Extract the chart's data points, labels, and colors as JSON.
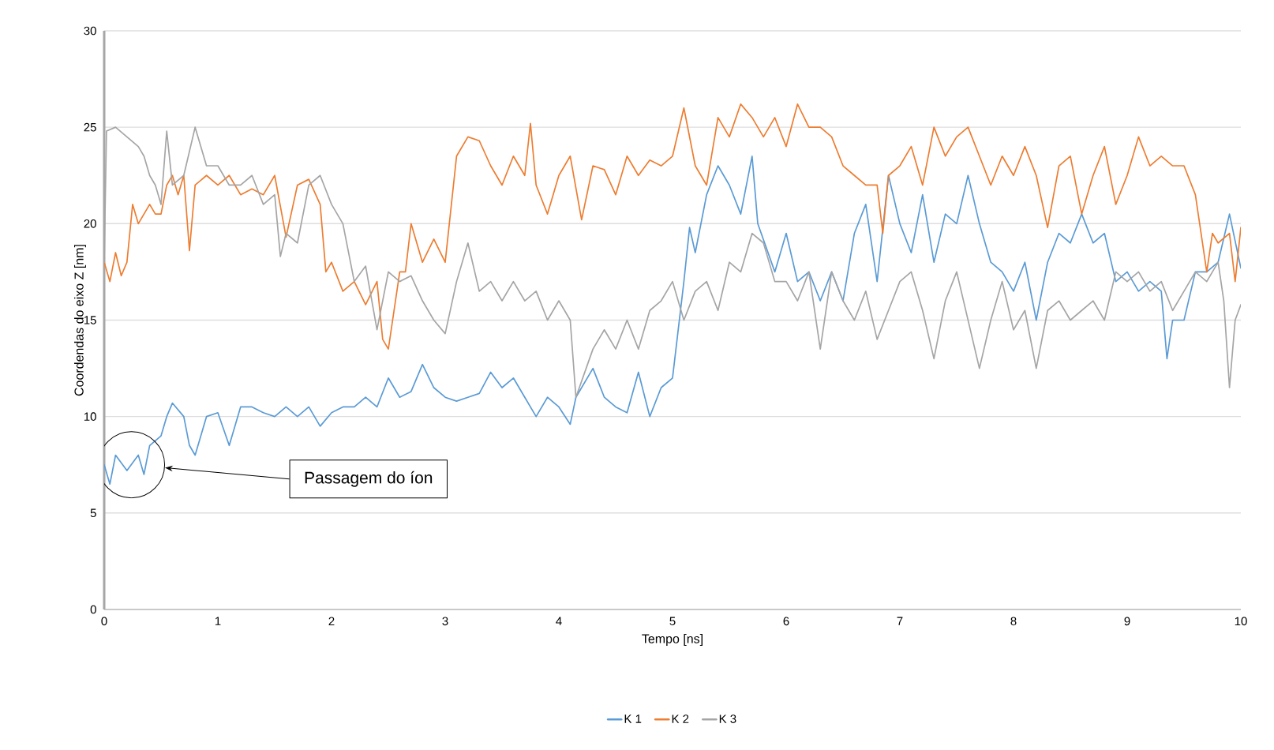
{
  "chart_data": {
    "type": "line",
    "xlabel": "Tempo [ns]",
    "ylabel": "Coordendas do eixo Z [nm]",
    "xlim": [
      0,
      10
    ],
    "ylim": [
      0,
      30
    ],
    "xticks": [
      0,
      1,
      2,
      3,
      4,
      5,
      6,
      7,
      8,
      9,
      10
    ],
    "yticks": [
      0,
      5,
      10,
      15,
      20,
      25,
      30
    ],
    "grid": "y",
    "legend": "bottom",
    "marker": "none",
    "line_style": "solid",
    "annotations": [
      "Passagem do íon"
    ],
    "series": [
      {
        "name": "K 1",
        "color": "#5b9bd5",
        "x": [
          0,
          0.05,
          0.1,
          0.2,
          0.3,
          0.35,
          0.4,
          0.5,
          0.55,
          0.6,
          0.7,
          0.75,
          0.8,
          0.9,
          1.0,
          1.1,
          1.2,
          1.3,
          1.4,
          1.5,
          1.6,
          1.7,
          1.8,
          1.9,
          2.0,
          2.1,
          2.2,
          2.3,
          2.4,
          2.5,
          2.6,
          2.7,
          2.8,
          2.9,
          3.0,
          3.1,
          3.2,
          3.3,
          3.4,
          3.5,
          3.6,
          3.7,
          3.8,
          3.9,
          4.0,
          4.1,
          4.15,
          4.3,
          4.4,
          4.5,
          4.6,
          4.7,
          4.8,
          4.9,
          5.0,
          5.1,
          5.15,
          5.2,
          5.3,
          5.4,
          5.5,
          5.6,
          5.7,
          5.75,
          5.9,
          6.0,
          6.1,
          6.2,
          6.3,
          6.4,
          6.5,
          6.6,
          6.7,
          6.8,
          6.9,
          7.0,
          7.1,
          7.2,
          7.3,
          7.4,
          7.5,
          7.6,
          7.7,
          7.8,
          7.9,
          8.0,
          8.1,
          8.2,
          8.3,
          8.4,
          8.5,
          8.6,
          8.7,
          8.8,
          8.9,
          9.0,
          9.1,
          9.2,
          9.3,
          9.35,
          9.4,
          9.5,
          9.6,
          9.7,
          9.8,
          9.9,
          10.0
        ],
        "values": [
          7.5,
          6.5,
          8,
          7.2,
          8,
          7,
          8.5,
          9,
          10,
          10.7,
          10,
          8.5,
          8,
          10,
          10.2,
          8.5,
          10.5,
          10.5,
          10.2,
          10,
          10.5,
          10,
          10.5,
          9.5,
          10.2,
          10.5,
          10.5,
          11,
          10.5,
          12,
          11,
          11.3,
          12.7,
          11.5,
          11,
          10.8,
          11,
          11.2,
          12.3,
          11.5,
          12,
          11,
          10,
          11,
          10.5,
          9.6,
          11,
          12.5,
          11,
          10.5,
          10.2,
          12.3,
          10,
          11.5,
          12,
          17,
          19.8,
          18.5,
          21.5,
          23,
          22,
          20.5,
          23.5,
          20,
          17.5,
          19.5,
          17,
          17.5,
          16,
          17.5,
          16,
          19.5,
          21,
          17,
          22.5,
          20,
          18.5,
          21.5,
          18,
          20.5,
          20,
          22.5,
          20,
          18,
          17.5,
          16.5,
          18,
          15,
          18,
          19.5,
          19,
          20.5,
          19,
          19.5,
          17,
          17.5,
          16.5,
          17,
          16.5,
          13,
          15,
          15,
          17.5,
          17.5,
          18,
          20.5,
          17.7
        ]
      },
      {
        "name": "K 2",
        "color": "#ed7d31",
        "x": [
          0,
          0.05,
          0.1,
          0.15,
          0.2,
          0.25,
          0.3,
          0.4,
          0.45,
          0.5,
          0.55,
          0.6,
          0.65,
          0.7,
          0.75,
          0.8,
          0.9,
          1.0,
          1.1,
          1.2,
          1.3,
          1.4,
          1.5,
          1.6,
          1.7,
          1.8,
          1.9,
          1.95,
          2.0,
          2.1,
          2.2,
          2.3,
          2.4,
          2.45,
          2.5,
          2.6,
          2.65,
          2.7,
          2.8,
          2.9,
          3.0,
          3.1,
          3.2,
          3.3,
          3.4,
          3.5,
          3.6,
          3.7,
          3.75,
          3.8,
          3.9,
          4.0,
          4.1,
          4.2,
          4.3,
          4.4,
          4.5,
          4.6,
          4.7,
          4.8,
          4.9,
          5.0,
          5.1,
          5.2,
          5.3,
          5.4,
          5.5,
          5.6,
          5.7,
          5.8,
          5.9,
          6.0,
          6.1,
          6.2,
          6.3,
          6.4,
          6.5,
          6.6,
          6.7,
          6.8,
          6.85,
          6.9,
          7.0,
          7.1,
          7.2,
          7.3,
          7.4,
          7.5,
          7.6,
          7.7,
          7.8,
          7.9,
          8.0,
          8.1,
          8.2,
          8.3,
          8.4,
          8.5,
          8.6,
          8.7,
          8.8,
          8.9,
          9.0,
          9.1,
          9.2,
          9.3,
          9.4,
          9.5,
          9.6,
          9.7,
          9.75,
          9.8,
          9.9,
          9.95,
          10.0
        ],
        "values": [
          18,
          17,
          18.5,
          17.3,
          18,
          21,
          20,
          21,
          20.5,
          20.5,
          22,
          22.5,
          21.5,
          22.5,
          18.6,
          22,
          22.5,
          22,
          22.5,
          21.5,
          21.8,
          21.5,
          22.5,
          19.3,
          22,
          22.3,
          21,
          17.5,
          18,
          16.5,
          17,
          15.8,
          17,
          14,
          13.5,
          17.5,
          17.5,
          20,
          18,
          19.2,
          18,
          23.5,
          24.5,
          24.3,
          23,
          22,
          23.5,
          22.5,
          25.2,
          22,
          20.5,
          22.5,
          23.5,
          20.2,
          23,
          22.8,
          21.5,
          23.5,
          22.5,
          23.3,
          23,
          23.5,
          26,
          23,
          22,
          25.5,
          24.5,
          26.2,
          25.5,
          24.5,
          25.5,
          24,
          26.2,
          25,
          25,
          24.5,
          23,
          22.5,
          22,
          22,
          19.5,
          22.5,
          23,
          24,
          22,
          25,
          23.5,
          24.5,
          25,
          23.5,
          22,
          23.5,
          22.5,
          24,
          22.5,
          19.8,
          23,
          23.5,
          20.5,
          22.5,
          24,
          21,
          22.5,
          24.5,
          23,
          23.5,
          23,
          23,
          21.5,
          17.5,
          19.5,
          19,
          19.5,
          17,
          19.8
        ]
      },
      {
        "name": "K 3",
        "color": "#a5a5a5",
        "x": [
          0,
          0.02,
          0.1,
          0.2,
          0.3,
          0.35,
          0.4,
          0.45,
          0.5,
          0.55,
          0.6,
          0.7,
          0.8,
          0.9,
          1.0,
          1.1,
          1.2,
          1.3,
          1.4,
          1.5,
          1.55,
          1.6,
          1.7,
          1.8,
          1.9,
          2.0,
          2.1,
          2.2,
          2.3,
          2.4,
          2.5,
          2.6,
          2.7,
          2.8,
          2.9,
          3.0,
          3.1,
          3.2,
          3.3,
          3.4,
          3.5,
          3.6,
          3.7,
          3.8,
          3.9,
          4.0,
          4.1,
          4.15,
          4.3,
          4.4,
          4.5,
          4.6,
          4.7,
          4.8,
          4.9,
          5.0,
          5.1,
          5.2,
          5.3,
          5.4,
          5.5,
          5.6,
          5.7,
          5.8,
          5.9,
          6.0,
          6.1,
          6.2,
          6.3,
          6.4,
          6.5,
          6.6,
          6.7,
          6.8,
          6.9,
          7.0,
          7.1,
          7.2,
          7.3,
          7.4,
          7.5,
          7.6,
          7.7,
          7.8,
          7.9,
          8.0,
          8.1,
          8.2,
          8.3,
          8.4,
          8.5,
          8.6,
          8.7,
          8.8,
          8.9,
          9.0,
          9.1,
          9.2,
          9.3,
          9.4,
          9.5,
          9.6,
          9.7,
          9.8,
          9.85,
          9.9,
          9.95,
          10.0
        ],
        "values": [
          18,
          24.8,
          25,
          24.5,
          24,
          23.5,
          22.5,
          22,
          21,
          24.8,
          22,
          22.5,
          25,
          23,
          23,
          22,
          22,
          22.5,
          21,
          21.5,
          18.3,
          19.5,
          19,
          22,
          22.5,
          21,
          20,
          17,
          17.8,
          14.5,
          17.5,
          17,
          17.3,
          16,
          15,
          14.3,
          17,
          19,
          16.5,
          17,
          16,
          17,
          16,
          16.5,
          15,
          16,
          15,
          11,
          13.5,
          14.5,
          13.5,
          15,
          13.5,
          15.5,
          16,
          17,
          15,
          16.5,
          17,
          15.5,
          18,
          17.5,
          19.5,
          19,
          17,
          17,
          16,
          17.5,
          13.5,
          17.5,
          16,
          15,
          16.5,
          14,
          15.5,
          17,
          17.5,
          15.5,
          13,
          16,
          17.5,
          15,
          12.5,
          15,
          17,
          14.5,
          15.5,
          12.5,
          15.5,
          16,
          15,
          15.5,
          16,
          15,
          17.5,
          17,
          17.5,
          16.5,
          17,
          15.5,
          16.5,
          17.5,
          17,
          18,
          16,
          11.5,
          15,
          15.8
        ]
      }
    ]
  }
}
